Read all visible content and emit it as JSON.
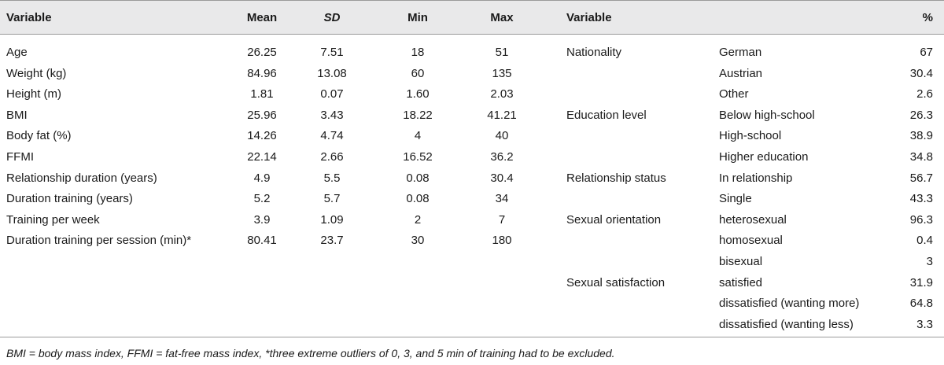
{
  "left_table": {
    "headers": [
      "Variable",
      "Mean",
      "SD",
      "Min",
      "Max"
    ],
    "rows": [
      [
        "Age",
        "26.25",
        "7.51",
        "18",
        "51"
      ],
      [
        "Weight (kg)",
        "84.96",
        "13.08",
        "60",
        "135"
      ],
      [
        "Height (m)",
        "1.81",
        "0.07",
        "1.60",
        "2.03"
      ],
      [
        "BMI",
        "25.96",
        "3.43",
        "18.22",
        "41.21"
      ],
      [
        "Body fat (%)",
        "14.26",
        "4.74",
        "4",
        "40"
      ],
      [
        "FFMI",
        "22.14",
        "2.66",
        "16.52",
        "36.2"
      ],
      [
        "Relationship duration (years)",
        "4.9",
        "5.5",
        "0.08",
        "30.4"
      ],
      [
        "Duration training (years)",
        "5.2",
        "5.7",
        "0.08",
        "34"
      ],
      [
        "Training per week",
        "3.9",
        "1.09",
        "2",
        "7"
      ],
      [
        "Duration training per session (min)*",
        "80.41",
        "23.7",
        "30",
        "180"
      ]
    ]
  },
  "right_table": {
    "headers": [
      "Variable",
      "%"
    ],
    "rows": [
      [
        "Nationality",
        "German",
        "67"
      ],
      [
        "",
        "Austrian",
        "30.4"
      ],
      [
        "",
        "Other",
        "2.6"
      ],
      [
        "Education level",
        "Below high-school",
        "26.3"
      ],
      [
        "",
        "High-school",
        "38.9"
      ],
      [
        "",
        "Higher education",
        "34.8"
      ],
      [
        "Relationship status",
        "In relationship",
        "56.7"
      ],
      [
        "",
        "Single",
        "43.3"
      ],
      [
        "Sexual orientation",
        "heterosexual",
        "96.3"
      ],
      [
        "",
        "homosexual",
        "0.4"
      ],
      [
        "",
        "bisexual",
        "3"
      ],
      [
        "Sexual satisfaction",
        "satisfied",
        "31.9"
      ],
      [
        "",
        "dissatisfied (wanting more)",
        "64.8"
      ],
      [
        "",
        "dissatisfied (wanting less)",
        "3.3"
      ]
    ]
  },
  "footnote": "BMI = body mass index, FFMI = fat-free mass index, *three extreme outliers of 0, 3, and 5 min of training had to be excluded."
}
